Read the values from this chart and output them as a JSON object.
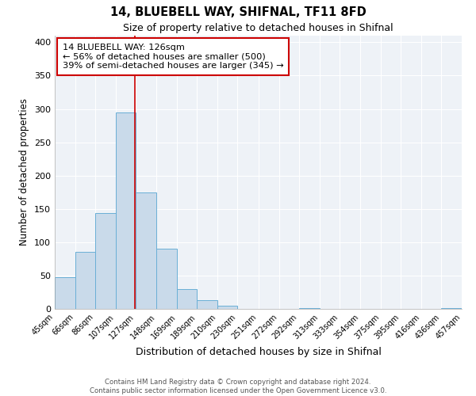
{
  "title": "14, BLUEBELL WAY, SHIFNAL, TF11 8FD",
  "subtitle": "Size of property relative to detached houses in Shifnal",
  "xlabel": "Distribution of detached houses by size in Shifnal",
  "ylabel": "Number of detached properties",
  "bin_edges": [
    45,
    66,
    86,
    107,
    127,
    148,
    169,
    189,
    210,
    230,
    251,
    272,
    292,
    313,
    333,
    354,
    375,
    395,
    416,
    436,
    457
  ],
  "bar_heights": [
    47,
    86,
    144,
    295,
    175,
    90,
    30,
    13,
    5,
    0,
    0,
    0,
    1,
    0,
    0,
    0,
    0,
    0,
    0,
    1
  ],
  "bar_color": "#c9daea",
  "bar_edge_color": "#6aafd6",
  "property_line_x": 126,
  "property_line_color": "#cc0000",
  "annotation_title": "14 BLUEBELL WAY: 126sqm",
  "annotation_line1": "← 56% of detached houses are smaller (500)",
  "annotation_line2": "39% of semi-detached houses are larger (345) →",
  "annotation_box_color": "#cc0000",
  "ylim": [
    0,
    410
  ],
  "yticks": [
    0,
    50,
    100,
    150,
    200,
    250,
    300,
    350,
    400
  ],
  "background_color": "#eef2f7",
  "footer1": "Contains HM Land Registry data © Crown copyright and database right 2024.",
  "footer2": "Contains public sector information licensed under the Open Government Licence v3.0."
}
